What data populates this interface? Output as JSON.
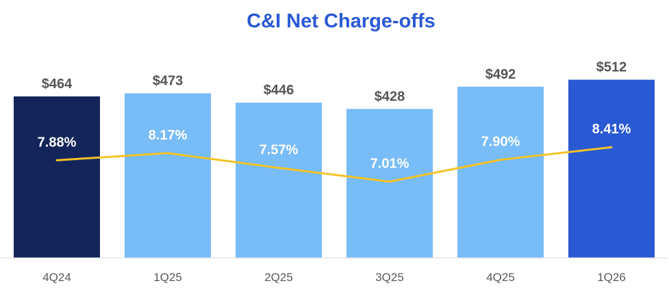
{
  "chart_data": {
    "type": "bar",
    "title": "C&I Net Charge-offs",
    "xlabel": "",
    "ylabel": "",
    "categories": [
      "4Q24",
      "1Q25",
      "2Q25",
      "3Q25",
      "4Q25",
      "1Q26"
    ],
    "series": [
      {
        "type": "bar",
        "values": [
          464,
          473,
          446,
          428,
          492,
          512
        ],
        "value_labels": [
          "$464",
          "$473",
          "$446",
          "$428",
          "$492",
          "$512"
        ],
        "colors": [
          "#13255a",
          "#78bcf8",
          "#78bcf8",
          "#78bcf8",
          "#78bcf8",
          "#2a59d4"
        ]
      },
      {
        "type": "line",
        "values": [
          7.88,
          8.17,
          7.57,
          7.01,
          7.9,
          8.41
        ],
        "value_labels": [
          "7.88%",
          "8.17%",
          "7.57%",
          "7.01%",
          "7.90%",
          "8.41%"
        ],
        "color": "#f5c324"
      }
    ],
    "ylim": [
      0,
      540
    ],
    "line_ylim": [
      5.0,
      10.0
    ],
    "grid": false,
    "legend": "none"
  },
  "colors": {
    "title": "#2a59d4",
    "baseline": "#d9d9d9"
  }
}
